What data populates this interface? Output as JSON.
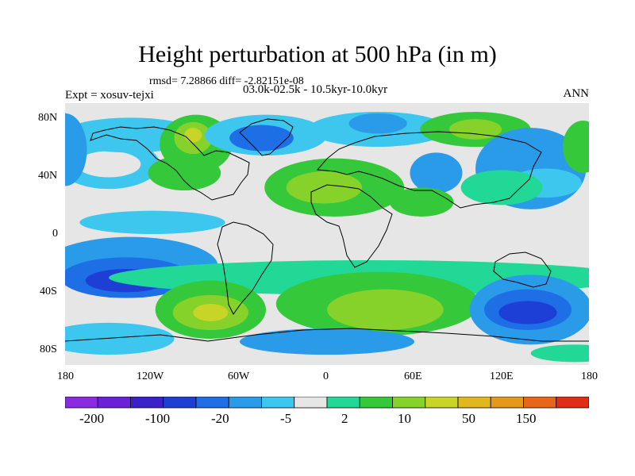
{
  "title": "Height perturbation at 500 hPa (in m)",
  "stats": "rmsd= 7.28866 diff= -2.82151e-08",
  "experiment": "Expt = xosuv-tejxi",
  "period": "03.0k-02.5k - 10.5kyr-10.0kyr",
  "season": "ANN",
  "axes": {
    "y_ticks": [
      "80N",
      "40N",
      "0",
      "40S",
      "80S"
    ],
    "x_ticks": [
      "180",
      "120W",
      "60W",
      "0",
      "60E",
      "120E",
      "180"
    ]
  },
  "colorbar": {
    "colors": [
      "#8a2be2",
      "#6a1fd8",
      "#3a22c8",
      "#1e3fd6",
      "#1e6fe6",
      "#2a9be8",
      "#3ec7ee",
      "#e6e6e6",
      "#22d896",
      "#35c83a",
      "#86d22a",
      "#c8d426",
      "#e0b81e",
      "#e39a1c",
      "#e8661a",
      "#e22d16"
    ],
    "labels": [
      "-200",
      "-100",
      "-20",
      "-5",
      "2",
      "10",
      "50",
      "150"
    ]
  },
  "map": {
    "fields": [
      {
        "level": 6,
        "lon": -150,
        "lat": 48,
        "rx": 35,
        "ry": 17
      },
      {
        "level": 7,
        "lon": -150,
        "lat": 48,
        "rx": 22,
        "ry": 9
      },
      {
        "level": 6,
        "lon": -135,
        "lat": 68,
        "rx": 48,
        "ry": 12
      },
      {
        "level": 5,
        "lon": -180,
        "lat": 58,
        "rx": 15,
        "ry": 25
      },
      {
        "level": 9,
        "lon": -90,
        "lat": 62,
        "rx": 25,
        "ry": 20
      },
      {
        "level": 10,
        "lon": -92,
        "lat": 66,
        "rx": 13,
        "ry": 11
      },
      {
        "level": 11,
        "lon": -92,
        "lat": 68,
        "rx": 6,
        "ry": 5
      },
      {
        "level": 9,
        "lon": -98,
        "lat": 42,
        "rx": 25,
        "ry": 12
      },
      {
        "level": 6,
        "lon": -42,
        "lat": 68,
        "rx": 42,
        "ry": 14
      },
      {
        "level": 4,
        "lon": -45,
        "lat": 66,
        "rx": 22,
        "ry": 9
      },
      {
        "level": 6,
        "lon": 35,
        "lat": 72,
        "rx": 48,
        "ry": 12
      },
      {
        "level": 5,
        "lon": 35,
        "lat": 76,
        "rx": 20,
        "ry": 7
      },
      {
        "level": 9,
        "lon": 5,
        "lat": 32,
        "rx": 48,
        "ry": 20
      },
      {
        "level": 10,
        "lon": -2,
        "lat": 32,
        "rx": 26,
        "ry": 11
      },
      {
        "level": 9,
        "lon": 102,
        "lat": 72,
        "rx": 38,
        "ry": 12
      },
      {
        "level": 10,
        "lon": 102,
        "lat": 72,
        "rx": 18,
        "ry": 7
      },
      {
        "level": 5,
        "lon": 75,
        "lat": 42,
        "rx": 18,
        "ry": 14
      },
      {
        "level": 5,
        "lon": 140,
        "lat": 45,
        "rx": 38,
        "ry": 28
      },
      {
        "level": 6,
        "lon": 150,
        "lat": 35,
        "rx": 25,
        "ry": 10
      },
      {
        "level": 9,
        "lon": 176,
        "lat": 60,
        "rx": 14,
        "ry": 18
      },
      {
        "level": 8,
        "lon": 120,
        "lat": 32,
        "rx": 28,
        "ry": 12
      },
      {
        "level": 9,
        "lon": 65,
        "lat": 22,
        "rx": 22,
        "ry": 10
      },
      {
        "level": 6,
        "lon": -120,
        "lat": 8,
        "rx": 50,
        "ry": 8
      },
      {
        "level": 5,
        "lon": -135,
        "lat": -22,
        "rx": 60,
        "ry": 20
      },
      {
        "level": 4,
        "lon": -138,
        "lat": -30,
        "rx": 45,
        "ry": 14
      },
      {
        "level": 3,
        "lon": -138,
        "lat": -32,
        "rx": 28,
        "ry": 8
      },
      {
        "level": 8,
        "lon": 30,
        "lat": -30,
        "rx": 180,
        "ry": 12
      },
      {
        "level": 9,
        "lon": 35,
        "lat": -48,
        "rx": 70,
        "ry": 22
      },
      {
        "level": 10,
        "lon": 40,
        "lat": -52,
        "rx": 40,
        "ry": 14
      },
      {
        "level": 9,
        "lon": -80,
        "lat": -52,
        "rx": 38,
        "ry": 20
      },
      {
        "level": 10,
        "lon": -80,
        "lat": -54,
        "rx": 26,
        "ry": 12
      },
      {
        "level": 11,
        "lon": -80,
        "lat": -54,
        "rx": 12,
        "ry": 6
      },
      {
        "level": 5,
        "lon": 140,
        "lat": -52,
        "rx": 42,
        "ry": 24
      },
      {
        "level": 4,
        "lon": 138,
        "lat": -52,
        "rx": 30,
        "ry": 14
      },
      {
        "level": 3,
        "lon": 138,
        "lat": -54,
        "rx": 20,
        "ry": 8
      },
      {
        "level": 6,
        "lon": -150,
        "lat": -72,
        "rx": 45,
        "ry": 11
      },
      {
        "level": 5,
        "lon": 0,
        "lat": -74,
        "rx": 60,
        "ry": 9
      },
      {
        "level": 8,
        "lon": 170,
        "lat": -82,
        "rx": 30,
        "ry": 6
      }
    ]
  }
}
